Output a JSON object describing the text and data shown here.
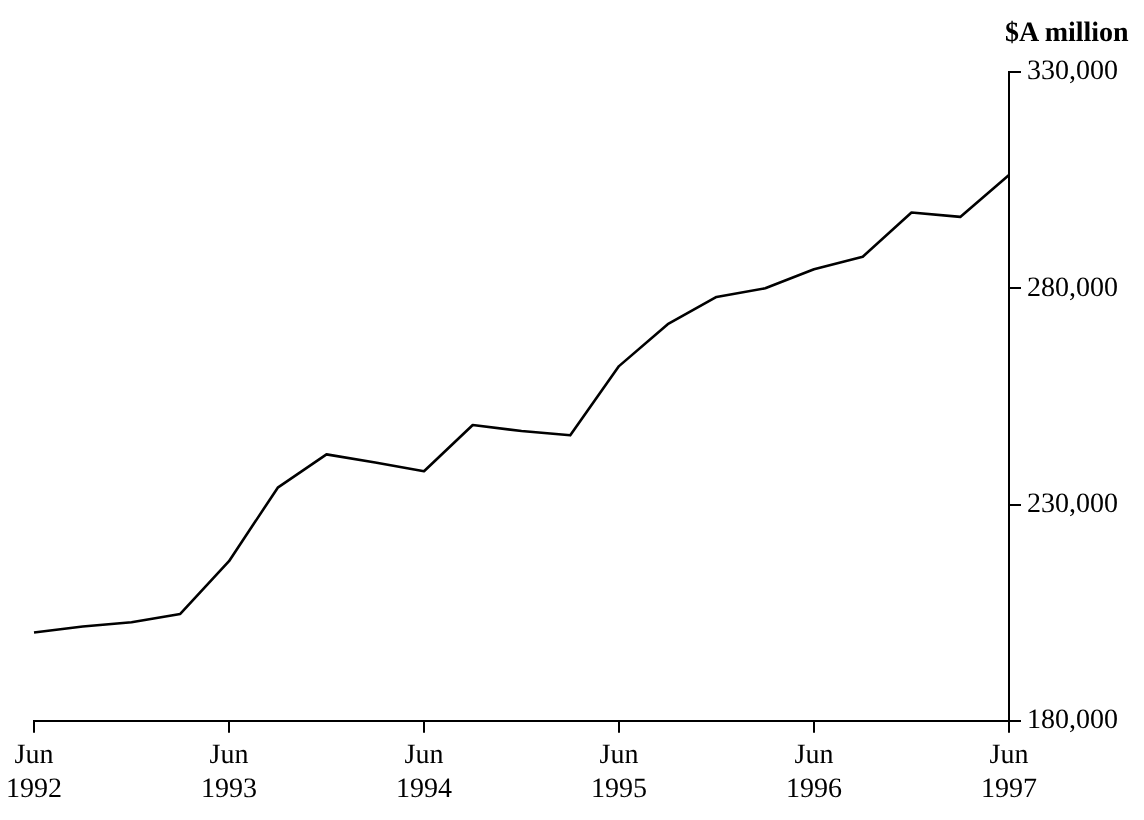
{
  "chart_data": {
    "type": "line",
    "ylabel": "$A million",
    "categories": [
      "Jun 1992",
      null,
      null,
      null,
      "Jun 1993",
      null,
      null,
      null,
      "Jun 1994",
      null,
      null,
      null,
      "Jun 1995",
      null,
      null,
      null,
      "Jun 1996",
      null,
      null,
      null,
      "Jun 1997"
    ],
    "series": [
      {
        "color": "#000000",
        "values": [
          200400,
          201800,
          202800,
          204700,
          216900,
          233900,
          241600,
          239700,
          237700,
          248400,
          247000,
          246000,
          262000,
          271700,
          278000,
          280000,
          284400,
          287300,
          297500,
          296500,
          306200
        ]
      }
    ],
    "ylim": [
      180000,
      330000
    ],
    "yticks": [
      {
        "value": 180000,
        "label": "180,000"
      },
      {
        "value": 230000,
        "label": "230,000"
      },
      {
        "value": 280000,
        "label": "280,000"
      },
      {
        "value": 330000,
        "label": "330,000"
      }
    ],
    "grid": false,
    "legend": false,
    "marker": "none",
    "line_style": "solid"
  }
}
